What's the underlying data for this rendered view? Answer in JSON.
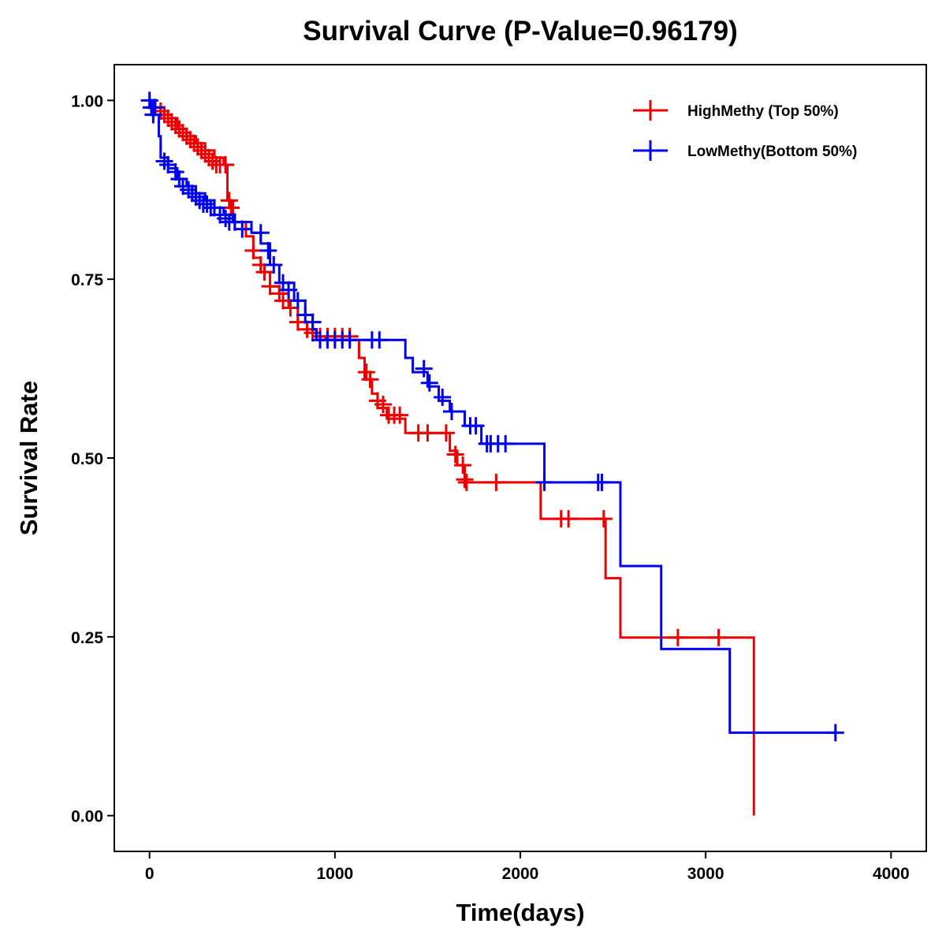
{
  "chart_data": {
    "type": "line",
    "subtype": "kaplan-meier step curve with censor marks",
    "title": "Survival Curve (P-Value=0.96179)",
    "xlabel": "Time(days)",
    "ylabel": "Survival Rate",
    "xlim": [
      -190,
      4190
    ],
    "ylim": [
      -0.05,
      1.05
    ],
    "x_ticks": [
      0,
      1000,
      2000,
      3000,
      4000
    ],
    "x_tick_labels": [
      "0",
      "1000",
      "2000",
      "3000",
      "4000"
    ],
    "y_ticks": [
      0,
      0.25,
      0.5,
      0.75,
      1.0
    ],
    "y_tick_labels": [
      "0.00",
      "0.25",
      "0.50",
      "0.75",
      "1.00"
    ],
    "grid": false,
    "legend_position": "top-right",
    "series": [
      {
        "name": "HighMethy (Top 50%)",
        "color": "#ee0000",
        "steps": [
          [
            0,
            1.0
          ],
          [
            30,
            0.99
          ],
          [
            60,
            0.98
          ],
          [
            100,
            0.975
          ],
          [
            150,
            0.96
          ],
          [
            200,
            0.95
          ],
          [
            250,
            0.94
          ],
          [
            300,
            0.93
          ],
          [
            350,
            0.92
          ],
          [
            400,
            0.91
          ],
          [
            420,
            0.86
          ],
          [
            450,
            0.83
          ],
          [
            520,
            0.81
          ],
          [
            560,
            0.78
          ],
          [
            600,
            0.76
          ],
          [
            650,
            0.74
          ],
          [
            700,
            0.73
          ],
          [
            750,
            0.71
          ],
          [
            800,
            0.69
          ],
          [
            850,
            0.68
          ],
          [
            900,
            0.67
          ],
          [
            950,
            0.665
          ],
          [
            1130,
            0.64
          ],
          [
            1160,
            0.61
          ],
          [
            1200,
            0.59
          ],
          [
            1230,
            0.57
          ],
          [
            1280,
            0.555
          ],
          [
            1380,
            0.535
          ],
          [
            1620,
            0.51
          ],
          [
            1660,
            0.49
          ],
          [
            1700,
            0.466
          ],
          [
            2110,
            0.415
          ],
          [
            2460,
            0.332
          ],
          [
            2540,
            0.249
          ],
          [
            3260,
            0.0
          ]
        ],
        "censors": [
          [
            30,
            0.99
          ],
          [
            60,
            0.985
          ],
          [
            80,
            0.98
          ],
          [
            100,
            0.975
          ],
          [
            120,
            0.97
          ],
          [
            140,
            0.965
          ],
          [
            160,
            0.96
          ],
          [
            180,
            0.955
          ],
          [
            200,
            0.95
          ],
          [
            220,
            0.945
          ],
          [
            240,
            0.94
          ],
          [
            260,
            0.935
          ],
          [
            280,
            0.93
          ],
          [
            300,
            0.925
          ],
          [
            320,
            0.92
          ],
          [
            340,
            0.915
          ],
          [
            360,
            0.91
          ],
          [
            380,
            0.91
          ],
          [
            410,
            0.91
          ],
          [
            430,
            0.86
          ],
          [
            440,
            0.85
          ],
          [
            460,
            0.83
          ],
          [
            560,
            0.79
          ],
          [
            600,
            0.77
          ],
          [
            620,
            0.76
          ],
          [
            650,
            0.74
          ],
          [
            700,
            0.73
          ],
          [
            720,
            0.72
          ],
          [
            760,
            0.71
          ],
          [
            800,
            0.69
          ],
          [
            850,
            0.68
          ],
          [
            880,
            0.675
          ],
          [
            920,
            0.67
          ],
          [
            960,
            0.67
          ],
          [
            1000,
            0.67
          ],
          [
            1040,
            0.67
          ],
          [
            1080,
            0.67
          ],
          [
            1170,
            0.62
          ],
          [
            1190,
            0.61
          ],
          [
            1230,
            0.58
          ],
          [
            1260,
            0.575
          ],
          [
            1290,
            0.56
          ],
          [
            1320,
            0.56
          ],
          [
            1350,
            0.56
          ],
          [
            1450,
            0.535
          ],
          [
            1500,
            0.535
          ],
          [
            1600,
            0.535
          ],
          [
            1650,
            0.505
          ],
          [
            1690,
            0.49
          ],
          [
            1700,
            0.47
          ],
          [
            1710,
            0.466
          ],
          [
            1870,
            0.466
          ],
          [
            2220,
            0.415
          ],
          [
            2260,
            0.415
          ],
          [
            2450,
            0.415
          ],
          [
            2850,
            0.249
          ],
          [
            3070,
            0.249
          ]
        ]
      },
      {
        "name": "LowMethy(Bottom 50%)",
        "color": "#0000ee",
        "steps": [
          [
            0,
            1.0
          ],
          [
            20,
            0.98
          ],
          [
            50,
            0.95
          ],
          [
            60,
            0.92
          ],
          [
            100,
            0.905
          ],
          [
            150,
            0.89
          ],
          [
            200,
            0.88
          ],
          [
            250,
            0.87
          ],
          [
            300,
            0.86
          ],
          [
            350,
            0.85
          ],
          [
            400,
            0.84
          ],
          [
            450,
            0.83
          ],
          [
            550,
            0.815
          ],
          [
            600,
            0.8
          ],
          [
            650,
            0.77
          ],
          [
            700,
            0.745
          ],
          [
            780,
            0.72
          ],
          [
            840,
            0.7
          ],
          [
            880,
            0.68
          ],
          [
            900,
            0.665
          ],
          [
            1380,
            0.64
          ],
          [
            1420,
            0.62
          ],
          [
            1500,
            0.6
          ],
          [
            1560,
            0.58
          ],
          [
            1620,
            0.565
          ],
          [
            1700,
            0.545
          ],
          [
            1790,
            0.52
          ],
          [
            2130,
            0.466
          ],
          [
            2540,
            0.349
          ],
          [
            2760,
            0.233
          ],
          [
            3130,
            0.116
          ],
          [
            3700,
            0.116
          ]
        ],
        "censors": [
          [
            0,
            1.0
          ],
          [
            10,
            0.99
          ],
          [
            20,
            0.98
          ],
          [
            30,
            0.99
          ],
          [
            80,
            0.915
          ],
          [
            100,
            0.91
          ],
          [
            140,
            0.9
          ],
          [
            160,
            0.89
          ],
          [
            180,
            0.88
          ],
          [
            210,
            0.875
          ],
          [
            230,
            0.87
          ],
          [
            250,
            0.865
          ],
          [
            270,
            0.86
          ],
          [
            290,
            0.855
          ],
          [
            310,
            0.855
          ],
          [
            330,
            0.85
          ],
          [
            350,
            0.85
          ],
          [
            380,
            0.84
          ],
          [
            410,
            0.835
          ],
          [
            430,
            0.83
          ],
          [
            460,
            0.83
          ],
          [
            500,
            0.82
          ],
          [
            600,
            0.815
          ],
          [
            640,
            0.79
          ],
          [
            670,
            0.77
          ],
          [
            720,
            0.745
          ],
          [
            750,
            0.735
          ],
          [
            800,
            0.72
          ],
          [
            840,
            0.7
          ],
          [
            880,
            0.69
          ],
          [
            920,
            0.665
          ],
          [
            960,
            0.665
          ],
          [
            1000,
            0.665
          ],
          [
            1040,
            0.665
          ],
          [
            1080,
            0.665
          ],
          [
            1200,
            0.665
          ],
          [
            1240,
            0.665
          ],
          [
            1480,
            0.625
          ],
          [
            1510,
            0.605
          ],
          [
            1580,
            0.585
          ],
          [
            1630,
            0.565
          ],
          [
            1730,
            0.545
          ],
          [
            1760,
            0.545
          ],
          [
            1820,
            0.52
          ],
          [
            1840,
            0.52
          ],
          [
            1880,
            0.52
          ],
          [
            1920,
            0.52
          ],
          [
            2130,
            0.466
          ],
          [
            2420,
            0.466
          ],
          [
            2440,
            0.466
          ],
          [
            3700,
            0.116
          ]
        ]
      }
    ]
  }
}
